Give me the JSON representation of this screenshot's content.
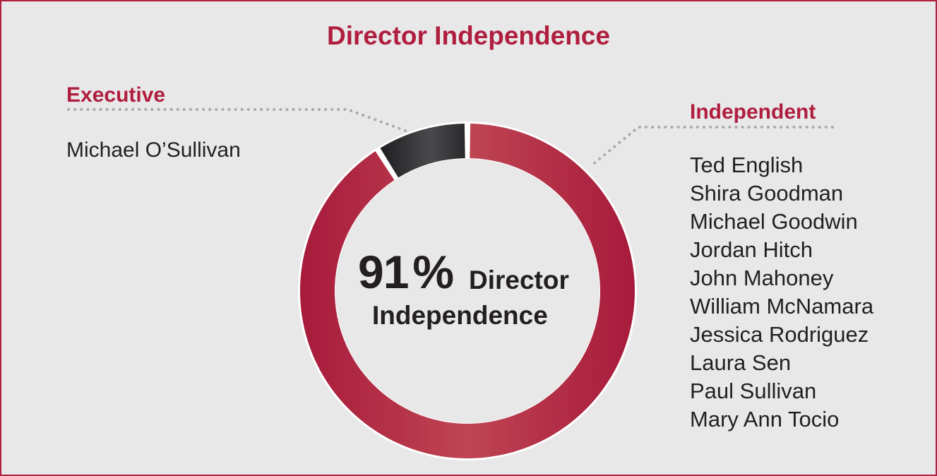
{
  "title": "Director Independence",
  "chart_data": {
    "type": "pie",
    "categories": [
      "Independent",
      "Executive"
    ],
    "values": [
      91,
      9
    ],
    "center_label": {
      "value": "91",
      "unit": "%",
      "line1": "Director",
      "line2": "Independence"
    },
    "colors": {
      "Independent": "#b01e3e",
      "Executive": "#2b2a2c"
    }
  },
  "executive": {
    "label": "Executive",
    "names": [
      "Michael O’Sullivan"
    ]
  },
  "independent": {
    "label": "Independent",
    "names": [
      "Ted English",
      "Shira Goodman",
      "Michael Goodwin",
      "Jordan Hitch",
      "John Mahoney",
      "William McNamara",
      "Jessica Rodriguez",
      "Laura Sen",
      "Paul Sullivan",
      "Mary Ann Tocio"
    ]
  }
}
